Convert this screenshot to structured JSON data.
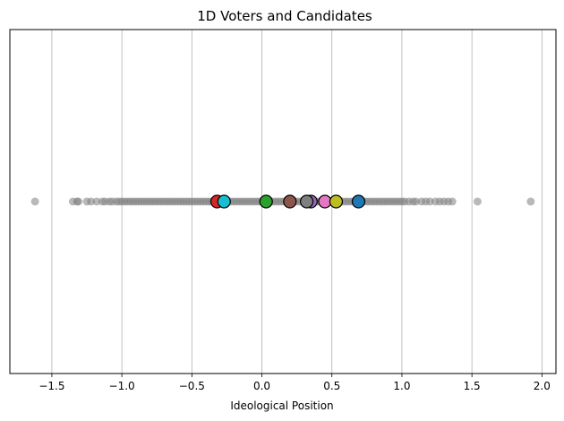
{
  "chart_data": {
    "type": "scatter",
    "title": "1D Voters and Candidates",
    "xlabel": "Ideological Position",
    "ylabel": "",
    "xlim": [
      -1.8,
      2.1
    ],
    "xticks": [
      -1.5,
      -1.0,
      -0.5,
      0.0,
      0.5,
      1.0,
      1.5,
      2.0
    ],
    "xtick_labels": [
      "−1.5",
      "−1.0",
      "−0.5",
      "0.0",
      "0.5",
      "1.0",
      "1.5",
      "2.0"
    ],
    "grid": "x-axis vertical lines",
    "legend": "none",
    "series": [
      {
        "role": "voters",
        "color": "#808080",
        "values": [
          -1.62,
          -1.35,
          -1.32,
          -1.31,
          -1.25,
          -1.22,
          -1.18,
          -1.14,
          -1.12,
          -1.09,
          -1.07,
          -1.04,
          -1.02,
          -1.0,
          -0.98,
          -0.96,
          -0.94,
          -0.92,
          -0.9,
          -0.88,
          -0.86,
          -0.84,
          -0.82,
          -0.8,
          -0.78,
          -0.76,
          -0.74,
          -0.72,
          -0.7,
          -0.68,
          -0.66,
          -0.64,
          -0.62,
          -0.6,
          -0.58,
          -0.56,
          -0.54,
          -0.52,
          -0.5,
          -0.48,
          -0.46,
          -0.44,
          -0.42,
          -0.4,
          -0.38,
          -0.36,
          -0.34,
          -0.32,
          -0.3,
          -0.28,
          -0.26,
          -0.24,
          -0.22,
          -0.2,
          -0.18,
          -0.16,
          -0.14,
          -0.12,
          -0.1,
          -0.08,
          -0.06,
          -0.04,
          -0.02,
          0.0,
          0.02,
          0.04,
          0.06,
          0.08,
          0.1,
          0.12,
          0.14,
          0.16,
          0.18,
          0.2,
          0.22,
          0.24,
          0.26,
          0.28,
          0.3,
          0.32,
          0.34,
          0.36,
          0.38,
          0.4,
          0.42,
          0.44,
          0.46,
          0.48,
          0.5,
          0.52,
          0.54,
          0.56,
          0.58,
          0.6,
          0.62,
          0.64,
          0.66,
          0.68,
          0.7,
          0.72,
          0.74,
          0.76,
          0.78,
          0.8,
          0.82,
          0.84,
          0.86,
          0.88,
          0.9,
          0.92,
          0.94,
          0.96,
          0.98,
          1.0,
          1.02,
          1.05,
          1.08,
          1.1,
          1.14,
          1.17,
          1.2,
          1.24,
          1.27,
          1.3,
          1.33,
          1.36,
          1.54,
          1.92
        ]
      },
      {
        "role": "candidates",
        "points": [
          {
            "x": -0.32,
            "color": "#d62728"
          },
          {
            "x": -0.27,
            "color": "#17becf"
          },
          {
            "x": 0.03,
            "color": "#2ca02c"
          },
          {
            "x": 0.2,
            "color": "#8c564b"
          },
          {
            "x": 0.35,
            "color": "#9467bd"
          },
          {
            "x": 0.32,
            "color": "#7f7f7f"
          },
          {
            "x": 0.45,
            "color": "#e377c2"
          },
          {
            "x": 0.53,
            "color": "#bcbd22"
          },
          {
            "x": 0.69,
            "color": "#1f77b4"
          }
        ]
      }
    ]
  }
}
